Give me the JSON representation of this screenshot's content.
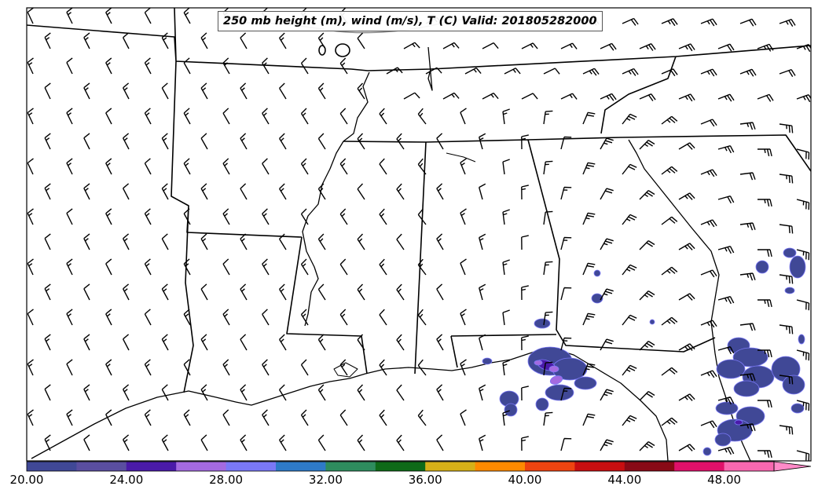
{
  "title": "250 mb height (m), wind (m/s), T (C) Valid: 201805282000",
  "colorbar": {
    "colors": [
      "#404896",
      "#5a4ea0",
      "#4a1aa8",
      "#a46ae0",
      "#7a78f6",
      "#2e7ac8",
      "#2e8c5e",
      "#0e6a18",
      "#d6b018",
      "#ff8a00",
      "#ee4410",
      "#c80e10",
      "#880a16",
      "#e0106a",
      "#f868b0"
    ],
    "extend_color": "#ff8ac8",
    "tick_labels": [
      "20.00",
      "24.00",
      "28.00",
      "32.00",
      "36.00",
      "40.00",
      "44.00",
      "48.00"
    ]
  },
  "precip_colors": {
    "low": "#404896",
    "mid": "#4a1aa8",
    "high": "#a46ae0",
    "edge": "#7a78f6"
  },
  "wind_barb_color": "#000000",
  "border_color": "#000000"
}
